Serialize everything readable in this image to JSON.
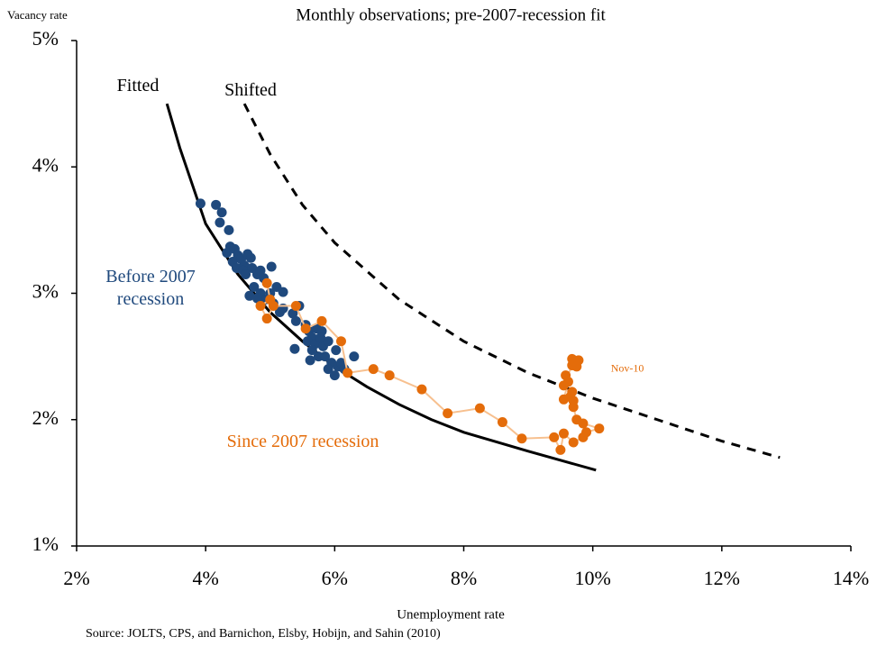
{
  "chart_data": {
    "type": "scatter",
    "title": "Monthly observations; pre-2007-recession fit",
    "y_label": "Vacancy rate",
    "x_label": "Unemployment rate",
    "source": "Source: JOLTS, CPS, and Barnichon, Elsby, Hobijn, and Sahin (2010)",
    "xlim": [
      2,
      14
    ],
    "ylim": [
      1,
      5
    ],
    "xticks": [
      {
        "value": 2,
        "label": "2%"
      },
      {
        "value": 4,
        "label": "4%"
      },
      {
        "value": 6,
        "label": "6%"
      },
      {
        "value": 8,
        "label": "8%"
      },
      {
        "value": 10,
        "label": "10%"
      },
      {
        "value": 12,
        "label": "12%"
      },
      {
        "value": 14,
        "label": "14%"
      }
    ],
    "yticks": [
      {
        "value": 1,
        "label": "1%"
      },
      {
        "value": 2,
        "label": "2%"
      },
      {
        "value": 3,
        "label": "3%"
      },
      {
        "value": 4,
        "label": "4%"
      },
      {
        "value": 5,
        "label": "5%"
      }
    ],
    "grid": false,
    "series": [
      {
        "name": "Fitted",
        "kind": "line",
        "color": "#000000",
        "x": [
          3.4,
          3.6,
          4,
          4.5,
          5,
          5.5,
          6,
          6.5,
          7,
          7.5,
          8,
          9,
          10.05
        ],
        "values": [
          4.5,
          4.15,
          3.55,
          3.15,
          2.85,
          2.62,
          2.42,
          2.26,
          2.12,
          2.0,
          1.9,
          1.75,
          1.6
        ]
      },
      {
        "name": "Shifted",
        "kind": "dashed",
        "color": "#000000",
        "x": [
          4.6,
          5,
          5.5,
          6,
          7,
          8,
          9,
          10,
          11,
          12,
          12.9
        ],
        "values": [
          4.5,
          4.1,
          3.7,
          3.4,
          2.95,
          2.62,
          2.37,
          2.17,
          2.0,
          1.83,
          1.7
        ]
      },
      {
        "name": "Before 2007 recession",
        "kind": "points",
        "color": "#1f497d",
        "x": [
          3.92,
          4.16,
          4.25,
          4.22,
          4.36,
          4.38,
          4.33,
          4.45,
          4.5,
          4.42,
          4.55,
          4.6,
          4.65,
          4.7,
          4.48,
          4.58,
          4.72,
          4.8,
          4.85,
          4.9,
          4.62,
          4.75,
          4.68,
          4.85,
          5.02,
          5.1,
          5.0,
          5.05,
          4.92,
          5.15,
          5.2,
          5.35,
          5.45,
          5.4,
          5.38,
          5.55,
          5.6,
          5.65,
          5.58,
          5.7,
          5.72,
          5.8,
          5.82,
          5.75,
          5.65,
          5.62,
          5.85,
          5.95,
          5.9,
          6.0,
          6.05,
          6.02,
          6.1,
          6.15,
          6.3,
          5.9,
          5.78,
          5.2,
          4.8
        ],
        "values": [
          3.71,
          3.7,
          3.64,
          3.56,
          3.5,
          3.37,
          3.32,
          3.35,
          3.3,
          3.25,
          3.27,
          3.22,
          3.31,
          3.28,
          3.2,
          3.18,
          3.2,
          3.15,
          3.18,
          3.12,
          3.15,
          3.05,
          2.98,
          3.0,
          3.21,
          3.05,
          3.0,
          2.92,
          2.95,
          2.85,
          2.88,
          2.84,
          2.9,
          2.78,
          2.56,
          2.75,
          2.7,
          2.65,
          2.62,
          2.6,
          2.72,
          2.7,
          2.58,
          2.5,
          2.55,
          2.47,
          2.5,
          2.45,
          2.4,
          2.35,
          2.42,
          2.55,
          2.45,
          2.4,
          2.5,
          2.62,
          2.65,
          3.01,
          2.96
        ]
      },
      {
        "name": "Since 2007 recession",
        "kind": "connected",
        "color": "#e46c0a",
        "line_color": "#f7c08f",
        "x": [
          4.95,
          5.0,
          4.85,
          4.95,
          5.05,
          5.4,
          5.55,
          5.8,
          6.1,
          6.2,
          6.6,
          6.85,
          7.35,
          7.75,
          8.25,
          8.6,
          8.9,
          9.4,
          9.5,
          9.55,
          9.7,
          9.85,
          9.9,
          10.1,
          9.85,
          9.75,
          9.7,
          9.7,
          9.65,
          9.68,
          9.55,
          9.62,
          9.58,
          9.55,
          9.68,
          9.68,
          9.78,
          9.75
        ],
        "values": [
          3.08,
          2.95,
          2.9,
          2.8,
          2.9,
          2.9,
          2.72,
          2.78,
          2.62,
          2.37,
          2.4,
          2.35,
          2.24,
          2.05,
          2.09,
          1.98,
          1.85,
          1.86,
          1.76,
          1.89,
          1.82,
          1.86,
          1.9,
          1.93,
          1.97,
          2.0,
          2.1,
          2.15,
          2.18,
          2.22,
          2.16,
          2.3,
          2.35,
          2.27,
          2.43,
          2.48,
          2.47,
          2.42
        ]
      }
    ],
    "annotations": [
      {
        "text": "Nov-10",
        "x": 10.28,
        "y": 2.4
      }
    ]
  }
}
